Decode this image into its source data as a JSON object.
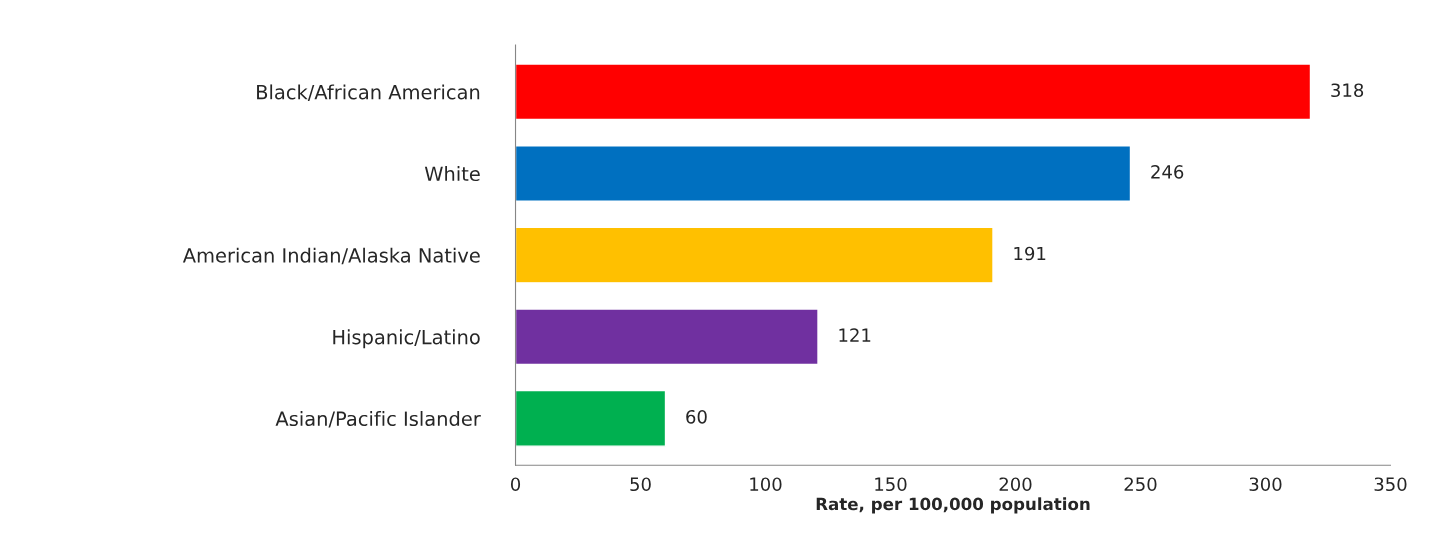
{
  "chart_data": {
    "type": "bar",
    "orientation": "horizontal",
    "xlabel": "Rate, per 100,000 population",
    "categories": [
      "Black/African American",
      "White",
      "American Indian/Alaska Native",
      "Hispanic/Latino",
      "Asian/Pacific Islander"
    ],
    "values": [
      318,
      246,
      191,
      121,
      60
    ],
    "colors": [
      "#ff0000",
      "#0070c0",
      "#ffc000",
      "#7030a0",
      "#00b050"
    ],
    "xlim": [
      0,
      350
    ],
    "xticks": [
      0,
      50,
      100,
      150,
      200,
      250,
      300,
      350
    ],
    "data_labels": true,
    "grid": false,
    "legend": false
  }
}
